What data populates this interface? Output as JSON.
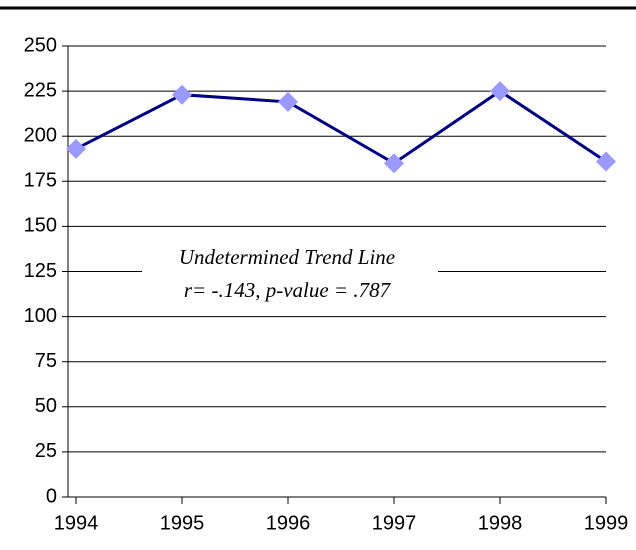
{
  "chart_data": {
    "type": "line",
    "x": [
      1994,
      1995,
      1996,
      1997,
      1998,
      1999
    ],
    "series": [
      {
        "color": "#000080",
        "marker_color": "#9999ff",
        "values": [
          193,
          223,
          219,
          185,
          225,
          186
        ]
      }
    ],
    "xlim": [
      1994,
      1999
    ],
    "xticks": [
      1994,
      1995,
      1996,
      1997,
      1998,
      1999
    ],
    "ylim": [
      0,
      250
    ],
    "yticks": [
      0,
      25,
      50,
      75,
      100,
      125,
      150,
      175,
      200,
      225,
      250
    ],
    "grid": true,
    "annotations": [
      "Undetermined Trend Line",
      "r= -.143, p-value = .787"
    ]
  }
}
